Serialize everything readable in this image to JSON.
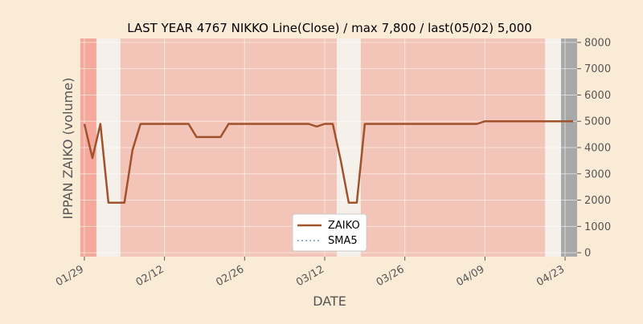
{
  "chart_data": {
    "type": "line",
    "title": "LAST YEAR 4767 NIKKO Line(Close) / max 7,800 / last(05/02) 5,000",
    "xlabel": "DATE",
    "ylabel": "IPPAN ZAIKO (volume)",
    "ylim": [
      -150,
      8150
    ],
    "y_ticks": [
      0,
      1000,
      2000,
      3000,
      4000,
      5000,
      6000,
      7000,
      8000
    ],
    "y_tick_labels": [
      "0",
      "1000",
      "2000",
      "3000",
      "4000",
      "5000",
      "6000",
      "7000",
      "8000"
    ],
    "x_range": [
      -0.5,
      61.5
    ],
    "x_ticks": [
      {
        "x": 0,
        "label": "01/29"
      },
      {
        "x": 10,
        "label": "02/12"
      },
      {
        "x": 20,
        "label": "02/26"
      },
      {
        "x": 30,
        "label": "03/12"
      },
      {
        "x": 40,
        "label": "03/26"
      },
      {
        "x": 50,
        "label": "04/09"
      },
      {
        "x": 60,
        "label": "04/23"
      }
    ],
    "grid": true,
    "legend_position": "bottom-center",
    "colors": {
      "background": "#faebd7",
      "plot_background": "#f5f0ea",
      "zaiko": "#a0522d",
      "sma5": "#8fb4d0",
      "axis": "#555555",
      "band_high": "#f4a99c",
      "band_mid": "#f3c4b8",
      "band_dark": "#a8a8a8"
    },
    "series": [
      {
        "name": "ZAIKO",
        "style": "solid",
        "x": [
          0,
          1,
          2,
          3,
          4,
          5,
          6,
          7,
          8,
          9,
          10,
          11,
          12,
          13,
          14,
          15,
          16,
          17,
          18,
          19,
          20,
          21,
          22,
          23,
          24,
          25,
          26,
          27,
          28,
          29,
          30,
          31,
          32,
          33,
          34,
          35,
          36,
          37,
          38,
          39,
          40,
          41,
          42,
          43,
          44,
          45,
          46,
          47,
          48,
          49,
          50,
          51,
          52,
          53,
          54,
          55,
          56,
          57,
          58,
          59,
          60,
          61
        ],
        "values": [
          4900,
          3600,
          4900,
          1900,
          1900,
          1900,
          3900,
          4900,
          4900,
          4900,
          4900,
          4900,
          4900,
          4900,
          4400,
          4400,
          4400,
          4400,
          4900,
          4900,
          4900,
          4900,
          4900,
          4900,
          4900,
          4900,
          4900,
          4900,
          4900,
          4800,
          4900,
          4900,
          3500,
          1900,
          1900,
          4900,
          4900,
          4900,
          4900,
          4900,
          4900,
          4900,
          4900,
          4900,
          4900,
          4900,
          4900,
          4900,
          4900,
          4900,
          5000,
          5000,
          5000,
          5000,
          5000,
          5000,
          5000,
          5000,
          5000,
          5000,
          5000,
          5000
        ]
      },
      {
        "name": "SMA5",
        "style": "dotted",
        "x": [],
        "values": []
      }
    ],
    "bands": [
      {
        "from": -0.5,
        "to": 1.5,
        "level": "high"
      },
      {
        "from": 4.5,
        "to": 31.5,
        "level": "mid"
      },
      {
        "from": 34.5,
        "to": 57.5,
        "level": "mid"
      },
      {
        "from": 59.5,
        "to": 61.5,
        "level": "dark"
      }
    ]
  }
}
